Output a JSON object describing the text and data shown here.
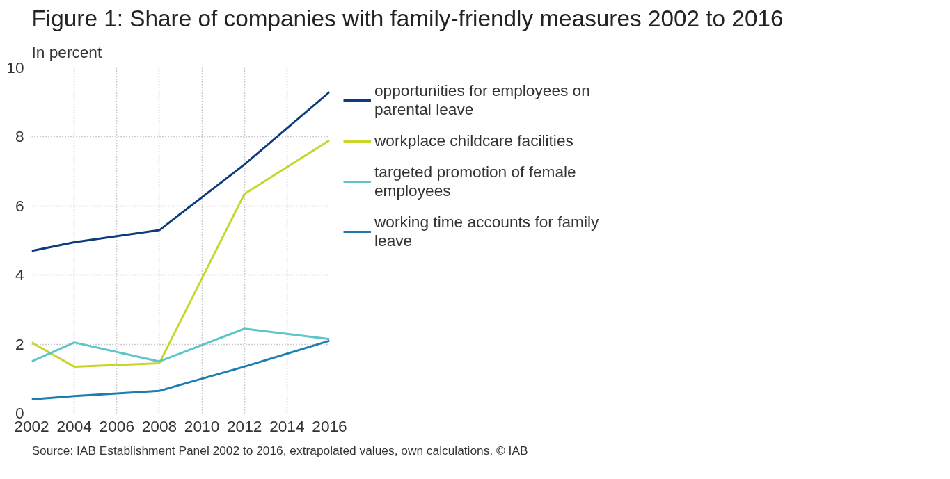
{
  "chart_data": {
    "type": "line",
    "title": "Figure 1: Share of companies with family-friendly measures 2002 to 2016",
    "subtitle": "In percent",
    "x": [
      2002,
      2004,
      2008,
      2012,
      2016
    ],
    "series": [
      {
        "name": "opportunities for employees on parental leave",
        "color": "#0b3c7d",
        "values": [
          4.7,
          4.95,
          5.3,
          7.2,
          9.3
        ]
      },
      {
        "name": "workplace childcare facilities",
        "color": "#c8d62a",
        "values": [
          2.05,
          1.35,
          1.45,
          6.35,
          7.9
        ]
      },
      {
        "name": "targeted promotion of female employees",
        "color": "#5cc5c8",
        "values": [
          1.5,
          2.05,
          1.5,
          2.45,
          2.15
        ]
      },
      {
        "name": "working time accounts for family leave",
        "color": "#1a7fb0",
        "values": [
          0.4,
          0.5,
          0.65,
          1.35,
          2.1
        ]
      }
    ],
    "xlim": [
      2002,
      2016
    ],
    "xticks": [
      2002,
      2004,
      2006,
      2008,
      2010,
      2012,
      2014,
      2016
    ],
    "ylim": [
      0,
      10
    ],
    "yticks": [
      0,
      2,
      4,
      6,
      8,
      10
    ],
    "grid": true,
    "legend": "right",
    "line_style": "solid",
    "annotations": [
      "Source: IAB Establishment Panel 2002 to 2016, extrapolated values, own calculations. © IAB"
    ]
  }
}
